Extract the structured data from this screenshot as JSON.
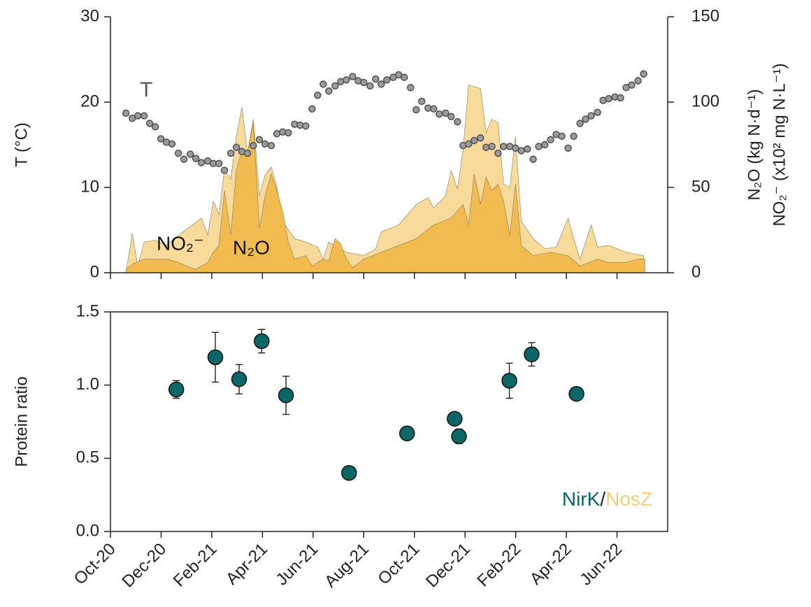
{
  "chart_data": [
    {
      "type": "combo",
      "ylabel": "T (°C)",
      "y2label": [
        "N₂O (kg N·d⁻¹)",
        "NO₂⁻ (x10² mg N·L⁻¹)"
      ],
      "xlim": [
        0,
        22
      ],
      "xticks": [
        0,
        2,
        4,
        6,
        8,
        10,
        12,
        14,
        16,
        18,
        20
      ],
      "ylim": [
        0,
        30
      ],
      "yticks": [
        0,
        10,
        20,
        30
      ],
      "y2lim": [
        0,
        150
      ],
      "y2ticks": [
        0,
        50,
        100,
        150
      ],
      "series": [
        {
          "name": "NO₂⁻",
          "type": "area",
          "axis": "y2",
          "color": "#f8d896",
          "x": [
            0.61,
            0.86,
            1.08,
            1.33,
            1.77,
            2.21,
            2.68,
            3.15,
            3.59,
            3.84,
            4.06,
            4.28,
            4.5,
            4.75,
            4.97,
            5.19,
            5.41,
            5.64,
            5.88,
            6.1,
            6.35,
            6.57,
            6.8,
            7.27,
            7.71,
            8.18,
            8.4,
            8.62,
            9.31,
            10.0,
            10.47,
            10.69,
            11.38,
            12.07,
            12.54,
            12.76,
            13.23,
            13.45,
            13.7,
            13.92,
            14.14,
            14.61,
            14.83,
            15.06,
            15.3,
            15.52,
            15.77,
            15.99,
            16.22,
            16.69,
            17.15,
            17.6,
            18.07,
            18.29,
            18.54,
            18.98,
            19.23,
            19.67,
            20.36,
            21.05
          ],
          "values": [
            0,
            23,
            4,
            18,
            19,
            16,
            22,
            27,
            32,
            22,
            42,
            34,
            60,
            55,
            80,
            97,
            70,
            90,
            45,
            57,
            62,
            50,
            30,
            20,
            18,
            15,
            8,
            18,
            12,
            10,
            14,
            24,
            28,
            40,
            44,
            38,
            45,
            60,
            49,
            72,
            110,
            108,
            82,
            90,
            88,
            52,
            50,
            80,
            30,
            20,
            14,
            15,
            32,
            20,
            8,
            28,
            15,
            16,
            12,
            10
          ]
        },
        {
          "name": "N₂O",
          "type": "area",
          "axis": "y2",
          "color": "#f0b94c",
          "x": [
            0.61,
            0.86,
            1.33,
            2.21,
            2.68,
            3.15,
            3.37,
            3.84,
            4.06,
            4.28,
            4.5,
            4.75,
            4.97,
            5.19,
            5.41,
            5.64,
            5.88,
            6.1,
            6.35,
            6.57,
            6.8,
            7.02,
            7.27,
            7.71,
            7.96,
            8.4,
            8.62,
            8.87,
            9.09,
            9.31,
            9.56,
            10.0,
            10.69,
            11.38,
            12.07,
            12.76,
            13.45,
            13.92,
            14.14,
            14.36,
            14.61,
            14.83,
            15.06,
            15.3,
            15.52,
            15.77,
            15.99,
            16.22,
            16.69,
            17.38,
            18.07,
            18.54,
            19.23,
            19.67,
            20.36,
            20.83,
            21.1
          ],
          "values": [
            2,
            5,
            8,
            8,
            6,
            3,
            2,
            6,
            12,
            16,
            48,
            22,
            60,
            72,
            70,
            88,
            26,
            45,
            58,
            48,
            36,
            18,
            8,
            10,
            4,
            8,
            7,
            20,
            17,
            8,
            3,
            8,
            12,
            16,
            20,
            28,
            32,
            40,
            28,
            58,
            40,
            56,
            48,
            52,
            42,
            22,
            52,
            16,
            10,
            12,
            10,
            4,
            8,
            6,
            6,
            8,
            8
          ]
        },
        {
          "name": "T",
          "type": "scatter",
          "color": "#9b9b9b",
          "x": [
            0.61,
            0.86,
            1.08,
            1.33,
            1.55,
            1.77,
            1.99,
            2.21,
            2.43,
            2.68,
            2.9,
            3.15,
            3.37,
            3.59,
            3.84,
            4.06,
            4.28,
            4.5,
            4.75,
            4.97,
            5.19,
            5.41,
            5.64,
            5.88,
            6.1,
            6.35,
            6.57,
            6.8,
            7.02,
            7.27,
            7.49,
            7.71,
            7.96,
            8.18,
            8.4,
            8.62,
            8.87,
            9.09,
            9.31,
            9.56,
            9.78,
            10.0,
            10.25,
            10.47,
            10.69,
            10.91,
            11.16,
            11.38,
            11.6,
            11.85,
            12.07,
            12.29,
            12.54,
            12.76,
            12.98,
            13.23,
            13.45,
            13.7,
            13.92,
            14.14,
            14.36,
            14.61,
            14.83,
            15.06,
            15.3,
            15.52,
            15.77,
            15.99,
            16.22,
            16.46,
            16.69,
            16.91,
            17.15,
            17.38,
            17.6,
            17.82,
            18.07,
            18.29,
            18.54,
            18.76,
            18.98,
            19.23,
            19.45,
            19.67,
            19.92,
            20.14,
            20.36,
            20.58,
            20.83,
            21.05
          ],
          "values": [
            18.7,
            18.1,
            18.4,
            18.4,
            17.5,
            17.1,
            15.7,
            15.3,
            15.1,
            14.0,
            13.3,
            13.9,
            13.4,
            12.9,
            13.1,
            12.8,
            12.8,
            12.0,
            14.0,
            14.7,
            14.2,
            14.0,
            14.9,
            15.6,
            15.1,
            14.9,
            16.3,
            16.5,
            16.4,
            17.4,
            17.3,
            17.2,
            19.2,
            20.8,
            22.1,
            21.3,
            21.9,
            22.4,
            22.6,
            23.0,
            22.5,
            22.3,
            21.9,
            22.7,
            22.1,
            22.6,
            22.9,
            23.2,
            22.9,
            21.7,
            19.1,
            20.1,
            19.3,
            19.2,
            18.6,
            18.7,
            18.3,
            17.7,
            14.9,
            15.1,
            15.5,
            15.8,
            14.7,
            14.8,
            14.0,
            14.8,
            14.8,
            14.6,
            14.3,
            14.5,
            13.3,
            14.8,
            15.0,
            15.6,
            16.2,
            16.0,
            14.6,
            16.0,
            17.5,
            18.0,
            18.4,
            18.8,
            20.2,
            20.4,
            20.6,
            20.5,
            21.7,
            22.0,
            22.5,
            23.3
          ]
        }
      ]
    },
    {
      "type": "errorbar",
      "ylabel": "Protein ratio",
      "annotation": [
        {
          "text": "NirK",
          "color": "#0b6666"
        },
        {
          "text": "/",
          "color": "#222222"
        },
        {
          "text": "NosZ",
          "color": "#f8cf7e"
        }
      ],
      "xlim": [
        0,
        22
      ],
      "xticks": [
        {
          "value": 0,
          "label": "Oct-20"
        },
        {
          "value": 2,
          "label": "Dec-20"
        },
        {
          "value": 4,
          "label": "Feb-21"
        },
        {
          "value": 6,
          "label": "Apr-21"
        },
        {
          "value": 8,
          "label": "Jun-21"
        },
        {
          "value": 10,
          "label": "Aug-21"
        },
        {
          "value": 12,
          "label": "Oct-21"
        },
        {
          "value": 14,
          "label": "Dec-21"
        },
        {
          "value": 16,
          "label": "Feb-22"
        },
        {
          "value": 18,
          "label": "Apr-22"
        },
        {
          "value": 20,
          "label": "Jun-22"
        }
      ],
      "ylim": [
        0,
        1.5
      ],
      "yticks": [
        {
          "value": 0,
          "label": "0.0"
        },
        0.5,
        {
          "value": 1,
          "label": "1.0"
        },
        1.5
      ],
      "color": "#0b6666",
      "x": [
        2.6,
        4.14,
        5.08,
        5.97,
        6.93,
        9.42,
        11.71,
        13.59,
        13.76,
        15.75,
        16.63,
        18.4
      ],
      "values": [
        0.97,
        1.19,
        1.04,
        1.3,
        0.93,
        0.4,
        0.67,
        0.77,
        0.65,
        1.03,
        1.21,
        0.94
      ],
      "errors": [
        0.06,
        0.17,
        0.1,
        0.08,
        0.13,
        0.02,
        0.02,
        0.02,
        0.05,
        0.12,
        0.08,
        0.04
      ]
    }
  ]
}
